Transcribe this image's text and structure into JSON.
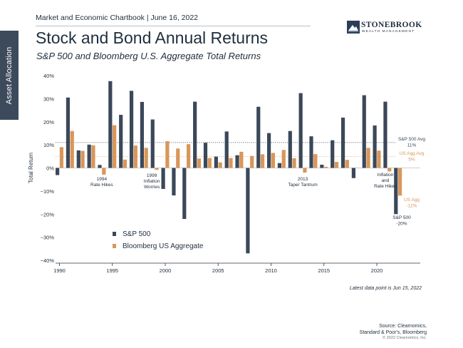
{
  "side_tab": "Asset Allocation",
  "header": "Market and Economic Chartbook | June 16, 2022",
  "logo": {
    "name": "STONEBROOK",
    "tagline": "WEALTH MANAGEMENT",
    "icon": "stonebrook-logo-icon"
  },
  "title": "Stock and Bond Annual Returns",
  "subtitle": "S&P 500 and Bloomberg U.S. Aggregate Total Returns",
  "latest_note": "Latest data point is Jun 15, 2022",
  "source": [
    "Source: Clearnomics,",
    "Standard & Poor's, Bloomberg"
  ],
  "copyright": "© 2022 Clearnomics, Inc.",
  "colors": {
    "sp500": "#3b4859",
    "agg": "#d9965a",
    "text": "#1f2d3d",
    "axis": "#333333"
  },
  "chart_data": {
    "type": "bar",
    "ylabel": "Total Return",
    "xlabel": "",
    "ylim": [
      -40,
      40
    ],
    "y_ticks": [
      {
        "value": 40,
        "label": "40%"
      },
      {
        "value": 30,
        "label": "30%"
      },
      {
        "value": 20,
        "label": "20%"
      },
      {
        "value": 10,
        "label": "10%"
      },
      {
        "value": 0,
        "label": "0%"
      },
      {
        "value": -10,
        "label": "−10%"
      },
      {
        "value": -20,
        "label": "−20%"
      },
      {
        "value": -30,
        "label": "−30%"
      },
      {
        "value": -40,
        "label": "−40%"
      }
    ],
    "x_ticks": [
      1990,
      1995,
      2000,
      2005,
      2010,
      2015,
      2020
    ],
    "x": [
      1990,
      1991,
      1992,
      1993,
      1994,
      1995,
      1996,
      1997,
      1998,
      1999,
      2000,
      2001,
      2002,
      2003,
      2004,
      2005,
      2006,
      2007,
      2008,
      2009,
      2010,
      2011,
      2012,
      2013,
      2014,
      2015,
      2016,
      2017,
      2018,
      2019,
      2020,
      2021,
      2022
    ],
    "series": [
      {
        "name": "S&P 500",
        "color": "#3b4859",
        "values": [
          -3.1,
          30.5,
          7.6,
          10.1,
          1.3,
          37.6,
          23.0,
          33.4,
          28.6,
          21.0,
          -9.1,
          -11.9,
          -22.1,
          28.7,
          10.9,
          4.9,
          15.8,
          5.5,
          -37.0,
          26.5,
          15.1,
          2.1,
          16.0,
          32.4,
          13.7,
          1.4,
          12.0,
          21.8,
          -4.4,
          31.5,
          18.4,
          28.7,
          -20.0
        ]
      },
      {
        "name": "Bloomberg US Aggregate",
        "color": "#d9965a",
        "values": [
          9.0,
          16.0,
          7.4,
          9.8,
          -2.9,
          18.5,
          3.6,
          9.7,
          8.7,
          -0.8,
          11.6,
          8.4,
          10.3,
          4.1,
          4.3,
          2.4,
          4.3,
          7.0,
          5.2,
          5.9,
          6.5,
          7.8,
          4.2,
          -2.0,
          6.0,
          0.5,
          2.6,
          3.5,
          0.0,
          8.7,
          7.5,
          -1.5,
          -12.0
        ]
      }
    ],
    "reference_lines": [
      {
        "label": "S&P 500 Avg",
        "value_label": "11%",
        "value": 11,
        "color": "#3b4859"
      },
      {
        "label": "US Agg Avg",
        "value_label": "5%",
        "value": 5,
        "color": "#d9965a"
      }
    ],
    "annotations": [
      {
        "lines": [
          "1994",
          "Rate Hikes"
        ],
        "year": 1994
      },
      {
        "lines": [
          "1999",
          "Inflation",
          "Worries"
        ],
        "year": 1999
      },
      {
        "lines": [
          "2013",
          "Taper Tantrum"
        ],
        "year": 2013
      },
      {
        "lines": [
          "Inflation",
          "and",
          "Rate Hikes"
        ],
        "year": 2022
      }
    ],
    "end_labels": [
      {
        "lines": [
          "US Agg",
          "-12%"
        ],
        "series": "Bloomberg US Aggregate"
      },
      {
        "lines": [
          "S&P 500",
          "-20%"
        ],
        "series": "S&P 500"
      }
    ],
    "legend": {
      "position": "bottom-left",
      "entries": [
        "S&P 500",
        "Bloomberg US Aggregate"
      ]
    }
  }
}
